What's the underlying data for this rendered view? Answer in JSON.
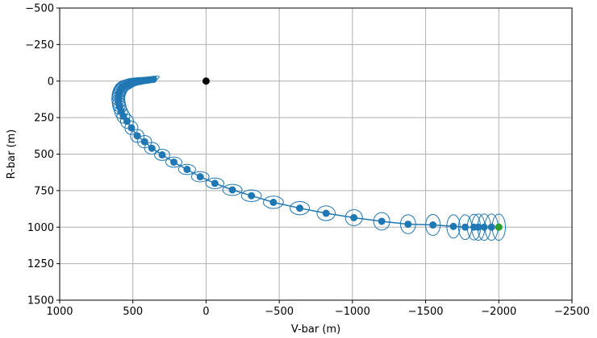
{
  "chart_data": {
    "type": "scatter",
    "title": "",
    "xlabel": "V-bar (m)",
    "ylabel": "R-bar (m)",
    "xlim": [
      1000,
      -2500
    ],
    "ylim": [
      1500,
      -500
    ],
    "x_inverted": true,
    "y_inverted": true,
    "grid": true,
    "xticks": [
      1000,
      500,
      0,
      -500,
      -1000,
      -1500,
      -2000,
      -2500
    ],
    "yticks": [
      -500,
      -250,
      0,
      250,
      500,
      750,
      1000,
      1250,
      1500
    ],
    "xtick_labels": [
      "1000",
      "500",
      "0",
      "−500",
      "−1000",
      "−1500",
      "−2000",
      "−2500"
    ],
    "ytick_labels": [
      "−500",
      "−250",
      "0",
      "250",
      "500",
      "750",
      "1000",
      "1250",
      "1500"
    ],
    "series": [
      {
        "role": "trajectory",
        "color": "#1f77b4",
        "x": [
          -2000,
          -1950,
          -1900,
          -1860,
          -1830,
          -1770,
          -1690,
          -1550,
          -1380,
          -1200,
          -1010,
          -820,
          -640,
          -460,
          -310,
          -180,
          -60,
          40,
          130,
          220,
          300,
          370,
          420,
          470,
          510,
          540,
          565,
          580,
          590,
          595,
          598,
          600,
          598,
          595,
          590,
          585,
          580,
          570,
          560,
          545,
          530,
          515,
          500,
          480,
          460,
          440,
          420,
          400,
          380,
          360
        ],
        "y": [
          1000,
          1000,
          1000,
          1000,
          1000,
          1000,
          995,
          985,
          980,
          960,
          935,
          905,
          870,
          830,
          785,
          745,
          700,
          655,
          605,
          555,
          505,
          460,
          415,
          375,
          320,
          275,
          240,
          210,
          180,
          160,
          140,
          120,
          100,
          85,
          70,
          60,
          50,
          40,
          32,
          25,
          18,
          12,
          8,
          4,
          1,
          -1,
          -4,
          -6,
          -9,
          -12
        ]
      },
      {
        "role": "covariance-ellipses",
        "color": "#1f77b4",
        "cx": [
          -2000,
          -1950,
          -1900,
          -1860,
          -1830,
          -1770,
          -1690,
          -1550,
          -1380,
          -1200,
          -1010,
          -820,
          -640,
          -460,
          -310,
          -180,
          -60,
          40,
          130,
          220,
          300,
          370,
          420,
          470,
          510,
          540,
          565,
          580,
          590,
          595,
          598,
          600,
          598,
          595,
          590,
          585,
          580,
          570,
          560,
          545,
          530,
          515,
          500,
          480,
          460,
          440,
          420,
          400,
          380,
          360
        ],
        "cy": [
          1000,
          1000,
          1000,
          1000,
          1000,
          1000,
          995,
          985,
          980,
          960,
          935,
          905,
          870,
          830,
          785,
          745,
          700,
          655,
          605,
          555,
          505,
          460,
          415,
          375,
          320,
          275,
          240,
          210,
          180,
          160,
          140,
          120,
          100,
          85,
          70,
          60,
          50,
          40,
          32,
          25,
          18,
          12,
          8,
          4,
          1,
          -1,
          -4,
          -6,
          -9,
          -12
        ],
        "rx": [
          45,
          45,
          45,
          45,
          45,
          45,
          45,
          50,
          52,
          55,
          58,
          62,
          66,
          68,
          68,
          66,
          62,
          60,
          58,
          55,
          52,
          50,
          48,
          46,
          44,
          44,
          44,
          44,
          44,
          44,
          44,
          44,
          44,
          44,
          44,
          44,
          44,
          44,
          44,
          44,
          44,
          44,
          44,
          44,
          44,
          44,
          44,
          44,
          44,
          44
        ],
        "ry": [
          90,
          90,
          90,
          90,
          88,
          85,
          80,
          72,
          65,
          60,
          55,
          50,
          45,
          42,
          40,
          38,
          36,
          35,
          35,
          35,
          38,
          40,
          42,
          44,
          46,
          48,
          48,
          48,
          48,
          48,
          48,
          48,
          48,
          46,
          44,
          42,
          40,
          38,
          36,
          34,
          32,
          30,
          28,
          26,
          24,
          22,
          20,
          18,
          16,
          14
        ],
        "angle_deg": [
          0,
          0,
          0,
          0,
          0,
          0,
          0,
          0,
          0,
          0,
          0,
          0,
          0,
          0,
          0,
          0,
          0,
          0,
          0,
          0,
          0,
          0,
          0,
          0,
          0,
          0,
          0,
          0,
          0,
          0,
          0,
          0,
          0,
          0,
          0,
          0,
          0,
          0,
          0,
          0,
          -5,
          -8,
          -10,
          -12,
          -15,
          -18,
          -20,
          -22,
          -25,
          -28
        ]
      },
      {
        "role": "markers",
        "color": "#1f77b4",
        "x": [
          -2000,
          -1950,
          -1900,
          -1860,
          -1830,
          -1770,
          -1690,
          -1550,
          -1380,
          -1200,
          -1010,
          -820,
          -640,
          -460,
          -310,
          -180,
          -60,
          40,
          130,
          220,
          300,
          370,
          420,
          470,
          510,
          540,
          565,
          580,
          590,
          595,
          598,
          600,
          598,
          595,
          590,
          585,
          580,
          570,
          560,
          545,
          530,
          515,
          500,
          480,
          460,
          440,
          420,
          400,
          380,
          360
        ],
        "y": [
          1000,
          1000,
          1000,
          1000,
          1000,
          1000,
          995,
          985,
          980,
          960,
          935,
          905,
          870,
          830,
          785,
          745,
          700,
          655,
          605,
          555,
          505,
          460,
          415,
          375,
          320,
          275,
          240,
          210,
          180,
          160,
          140,
          120,
          100,
          85,
          70,
          60,
          50,
          40,
          32,
          25,
          18,
          12,
          8,
          4,
          1,
          -1,
          -4,
          -6,
          -9,
          -12
        ]
      },
      {
        "role": "target",
        "color": "#000000",
        "x": [
          0
        ],
        "y": [
          0
        ]
      },
      {
        "role": "start",
        "color": "#2ca02c",
        "x": [
          -2000
        ],
        "y": [
          1000
        ]
      }
    ]
  }
}
